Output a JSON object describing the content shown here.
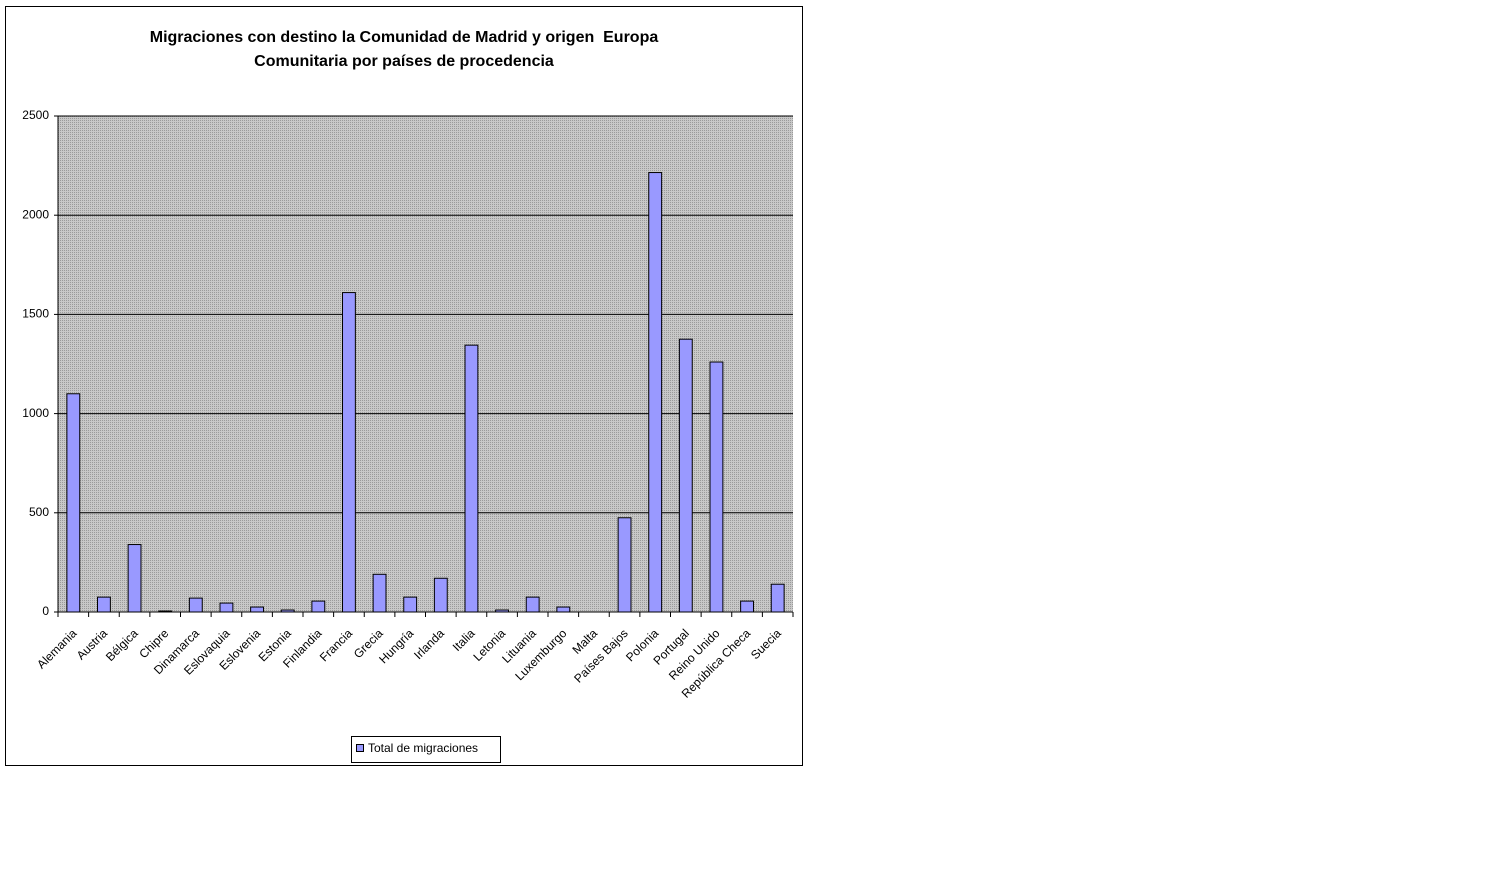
{
  "chart_data": {
    "type": "bar",
    "title": [
      "Migraciones con destino la Comunidad de Madrid y origen  Europa",
      "Comunitaria por países de procedencia"
    ],
    "categories": [
      "Alemania",
      "Austria",
      "Bélgica",
      "Chipre",
      "Dinamarca",
      "Eslovaquia",
      "Eslovenia",
      "Estonia",
      "Finlandia",
      "Francia",
      "Grecia",
      "Hungría",
      "Irlanda",
      "Italia",
      "Letonia",
      "Lituania",
      "Luxemburgo",
      "Malta",
      "Países Bajos",
      "Polonia",
      "Portugal",
      "Reino Unido",
      "República Checa",
      "Suecia"
    ],
    "series": [
      {
        "name": "Total de migraciones",
        "color": "#9999ff",
        "values": [
          1100,
          75,
          340,
          5,
          70,
          45,
          25,
          10,
          55,
          1610,
          190,
          75,
          170,
          1345,
          10,
          75,
          25,
          0,
          475,
          2215,
          1375,
          1260,
          55,
          140
        ]
      }
    ],
    "ylim": [
      0,
      2500
    ],
    "yticks": [
      0,
      500,
      1000,
      1500,
      2000,
      2500
    ],
    "grid": true,
    "legend": "bottom"
  }
}
